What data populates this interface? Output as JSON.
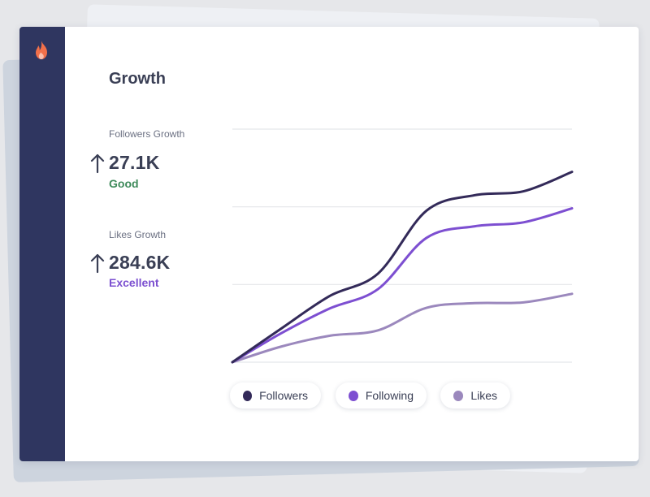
{
  "page": {
    "title": "Growth",
    "logo": "flame-icon"
  },
  "stats": [
    {
      "label": "Followers Growth",
      "value": "27.1K",
      "rating": "Good",
      "rating_color": "#3d8a5a",
      "trend_icon": "arrow-up-icon"
    },
    {
      "label": "Likes Growth",
      "value": "284.6K",
      "rating": "Excellent",
      "rating_color": "#7b4fd0",
      "trend_icon": "arrow-up-icon"
    }
  ],
  "colors": {
    "sidebar": "#2f3660",
    "logo": "#f2704a"
  },
  "chart_data": {
    "type": "line",
    "x": [
      0,
      1,
      2,
      3,
      4,
      5,
      6,
      7
    ],
    "ylim": [
      0,
      3
    ],
    "grid": true,
    "legend_position": "bottom",
    "series": [
      {
        "name": "Followers",
        "color": "#332a59",
        "values": [
          0,
          0.43,
          0.85,
          1.14,
          1.95,
          2.15,
          2.2,
          2.45
        ]
      },
      {
        "name": "Following",
        "color": "#7d4fd1",
        "values": [
          0,
          0.37,
          0.69,
          0.94,
          1.6,
          1.75,
          1.8,
          1.98
        ]
      },
      {
        "name": "Likes",
        "color": "#9b88bd",
        "values": [
          0,
          0.2,
          0.34,
          0.41,
          0.7,
          0.76,
          0.77,
          0.88
        ]
      }
    ]
  }
}
